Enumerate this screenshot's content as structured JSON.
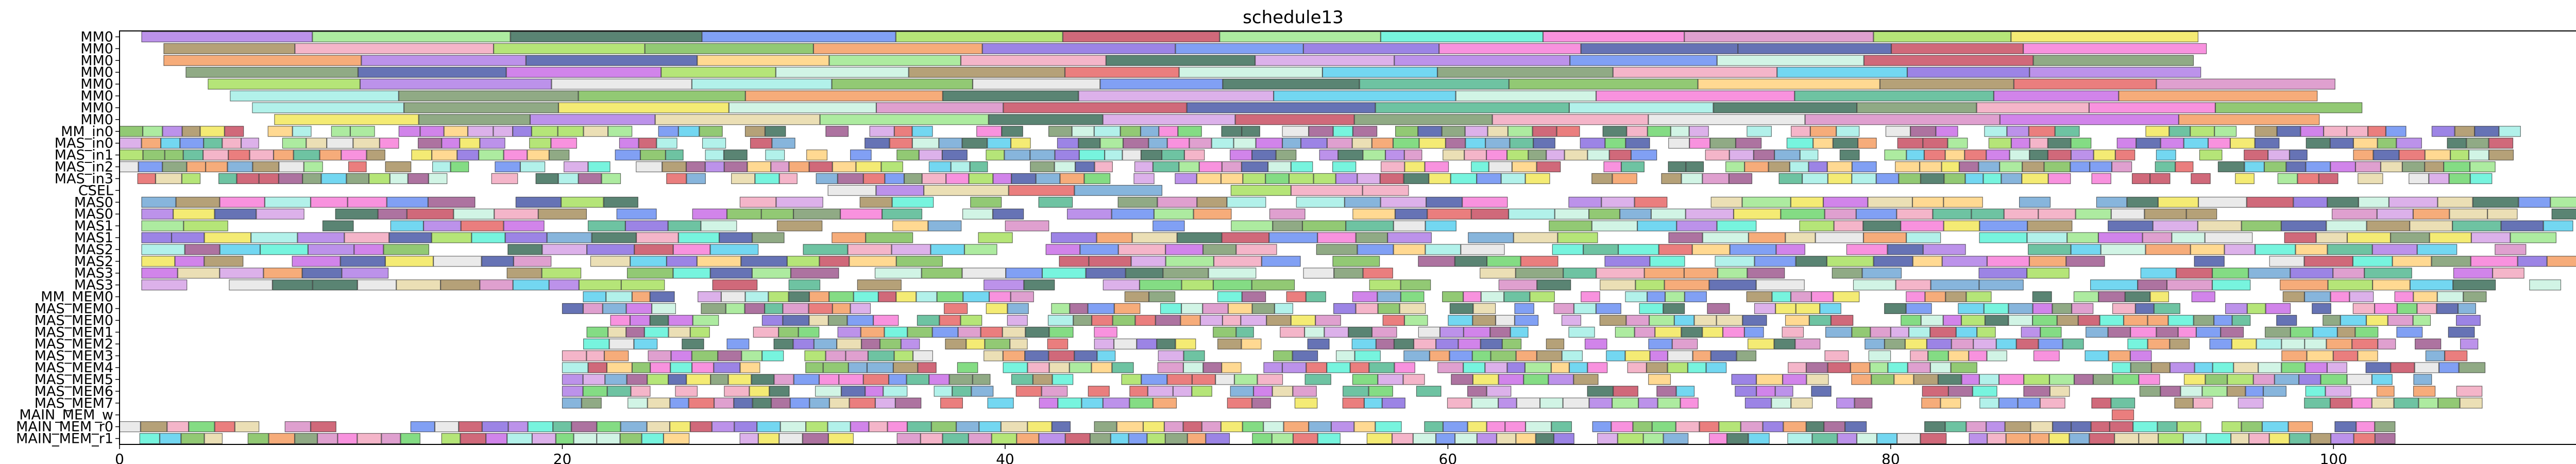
{
  "chart_data": {
    "type": "gantt",
    "title": "schedule13",
    "xlabel": "",
    "ylabel": "",
    "xlim": [
      0,
      111
    ],
    "x_ticks": [
      "0",
      "20",
      "40",
      "60",
      "80",
      "100"
    ],
    "grid": false,
    "legend": "none",
    "rows": [
      "MM0",
      "MM0",
      "MM0",
      "MM0",
      "MM0",
      "MM0",
      "MM0",
      "MM0",
      "MM_in0",
      "MAS_in0",
      "MAS_in1",
      "MAS_in2",
      "MAS_in3",
      "CSEL",
      "MAS0",
      "MAS0",
      "MAS1",
      "MAS1",
      "MAS2",
      "MAS2",
      "MAS3",
      "MAS3",
      "MM_MEM0",
      "MAS_MEM0",
      "MAS_MEM0",
      "MAS_MEM1",
      "MAS_MEM2",
      "MAS_MEM3",
      "MAS_MEM4",
      "MAS_MEM5",
      "MAS_MEM6",
      "MAS_MEM7",
      "MAIN_MEM_w",
      "MAIN_MEM_r0",
      "MAIN_MEM_r1"
    ],
    "palette": [
      "#d98fc7",
      "#5ff2d8",
      "#55b992",
      "#3d6e5a",
      "#c9f2e0",
      "#7d9b70",
      "#a8e060",
      "#c84f63",
      "#8b6fe0",
      "#6b8ff2",
      "#f2a8c0",
      "#e8d9a8",
      "#a89060",
      "#e66767",
      "#b07fe6",
      "#9fe88f",
      "#f77fd8",
      "#d6a3e6",
      "#4b5aa8",
      "#7fbf5c",
      "#f59e63",
      "#f2e85c",
      "#72a8d6",
      "#a5efe6",
      "#e6e6e6",
      "#5ad0ef",
      "#c96fe6",
      "#6fd66f",
      "#9f5b8f",
      "#ffd27f"
    ],
    "colors": {
      "background": "#ffffff",
      "axis": "#000000"
    }
  }
}
